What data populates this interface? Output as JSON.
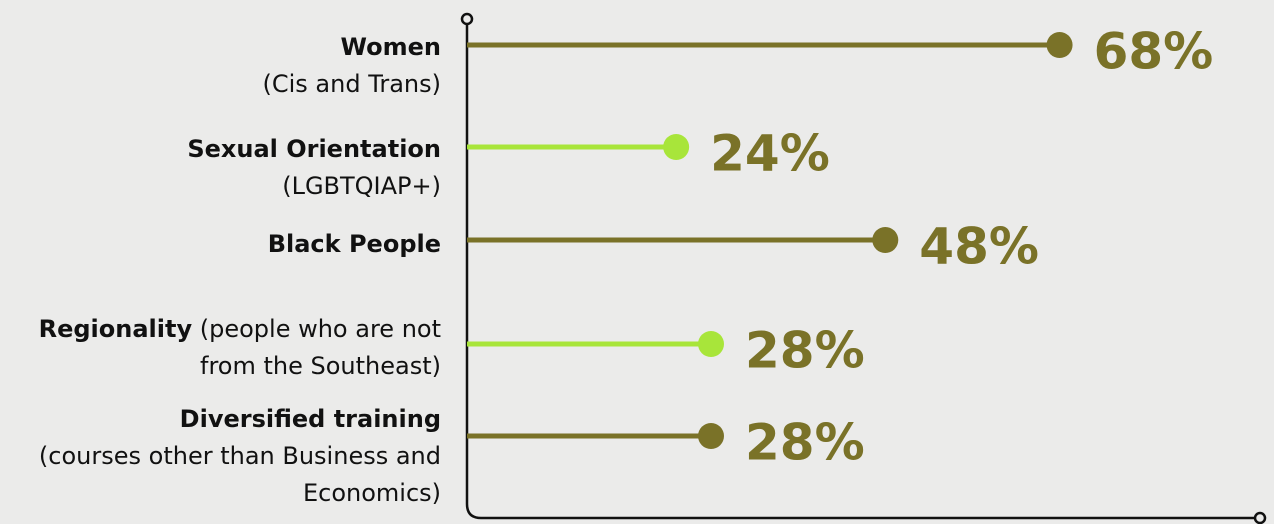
{
  "chart_data": {
    "type": "lollipop",
    "categories": [
      "Women",
      "Sexual Orientation",
      "Black People",
      "Regionality",
      "Diversified training"
    ],
    "category_details": [
      "(Cis and Trans)",
      "(LGBTQIAP+)",
      null,
      "(people who are not from the Southeast)",
      "(courses other than Business and Economics)"
    ],
    "values": [
      68,
      24,
      48,
      28,
      28
    ],
    "value_labels": [
      "68%",
      "24%",
      "48%",
      "28%",
      "28%"
    ],
    "colors": [
      "#7a7228",
      "#a8e53a",
      "#7a7228",
      "#a8e53a",
      "#7a7228"
    ],
    "value_label_color": "#7a7228",
    "xlim": [
      0,
      91
    ]
  }
}
